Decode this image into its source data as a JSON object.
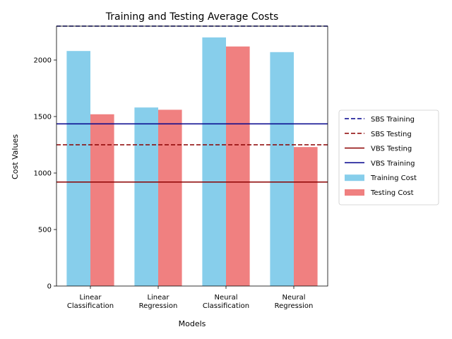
{
  "chart_data": {
    "type": "bar",
    "title": "Training and Testing Average Costs",
    "xlabel": "Models",
    "ylabel": "Cost Values",
    "categories": [
      [
        "Linear",
        "Classification"
      ],
      [
        "Linear",
        "Regression"
      ],
      [
        "Neural",
        "Classification"
      ],
      [
        "Neural",
        "Regression"
      ]
    ],
    "series": [
      {
        "name": "Training Cost",
        "color": "#87ceeb",
        "values": [
          2080,
          1580,
          2200,
          2070
        ]
      },
      {
        "name": "Testing Cost",
        "color": "#f08080",
        "values": [
          1520,
          1560,
          2120,
          1230
        ]
      }
    ],
    "reference_lines": [
      {
        "name": "SBS Training",
        "value": 2300,
        "color": "#00008b",
        "style": "dashed"
      },
      {
        "name": "SBS Testing",
        "value": 1250,
        "color": "#8b0000",
        "style": "dashed"
      },
      {
        "name": "VBS Testing",
        "value": 920,
        "color": "#8b0000",
        "style": "solid"
      },
      {
        "name": "VBS Training",
        "value": 1435,
        "color": "#00008b",
        "style": "solid"
      }
    ],
    "ylim": [
      0,
      2300
    ],
    "yticks": [
      0,
      500,
      1000,
      1500,
      2000
    ],
    "grid": false,
    "legend_position": "right"
  }
}
